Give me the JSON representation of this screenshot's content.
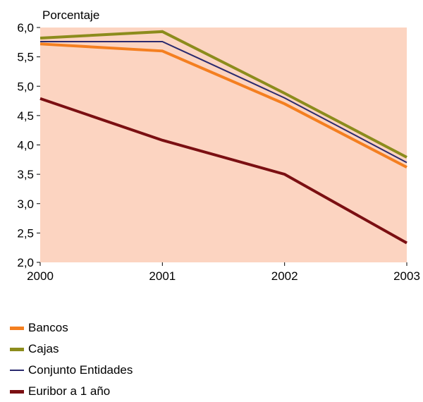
{
  "chart_data": {
    "type": "line",
    "ylabel": "Porcentaje",
    "categories": [
      "2000",
      "2001",
      "2002",
      "2003"
    ],
    "ylim": [
      2.0,
      6.0
    ],
    "yticks": [
      "2,0",
      "2,5",
      "3,0",
      "3,5",
      "4,0",
      "4,5",
      "5,0",
      "5,5",
      "6,0"
    ],
    "ytick_values": [
      2.0,
      2.5,
      3.0,
      3.5,
      4.0,
      4.5,
      5.0,
      5.5,
      6.0
    ],
    "grid": false,
    "plot_background": "#fcd4c1",
    "legend_placement": "bottom-left",
    "series": [
      {
        "name": "Bancos",
        "values": [
          5.72,
          5.6,
          4.7,
          3.62
        ],
        "color": "#f47f20",
        "width": "thick"
      },
      {
        "name": "Cajas",
        "values": [
          5.82,
          5.93,
          4.88,
          3.79
        ],
        "color": "#8c8c1c",
        "width": "thick"
      },
      {
        "name": "Conjunto Entidades",
        "values": [
          5.76,
          5.76,
          4.8,
          3.7
        ],
        "color": "#2a2a6e",
        "width": "thin"
      },
      {
        "name": "Euribor a 1 año",
        "values": [
          4.79,
          4.08,
          3.5,
          2.33
        ],
        "color": "#7b0f12",
        "width": "thick"
      }
    ]
  }
}
